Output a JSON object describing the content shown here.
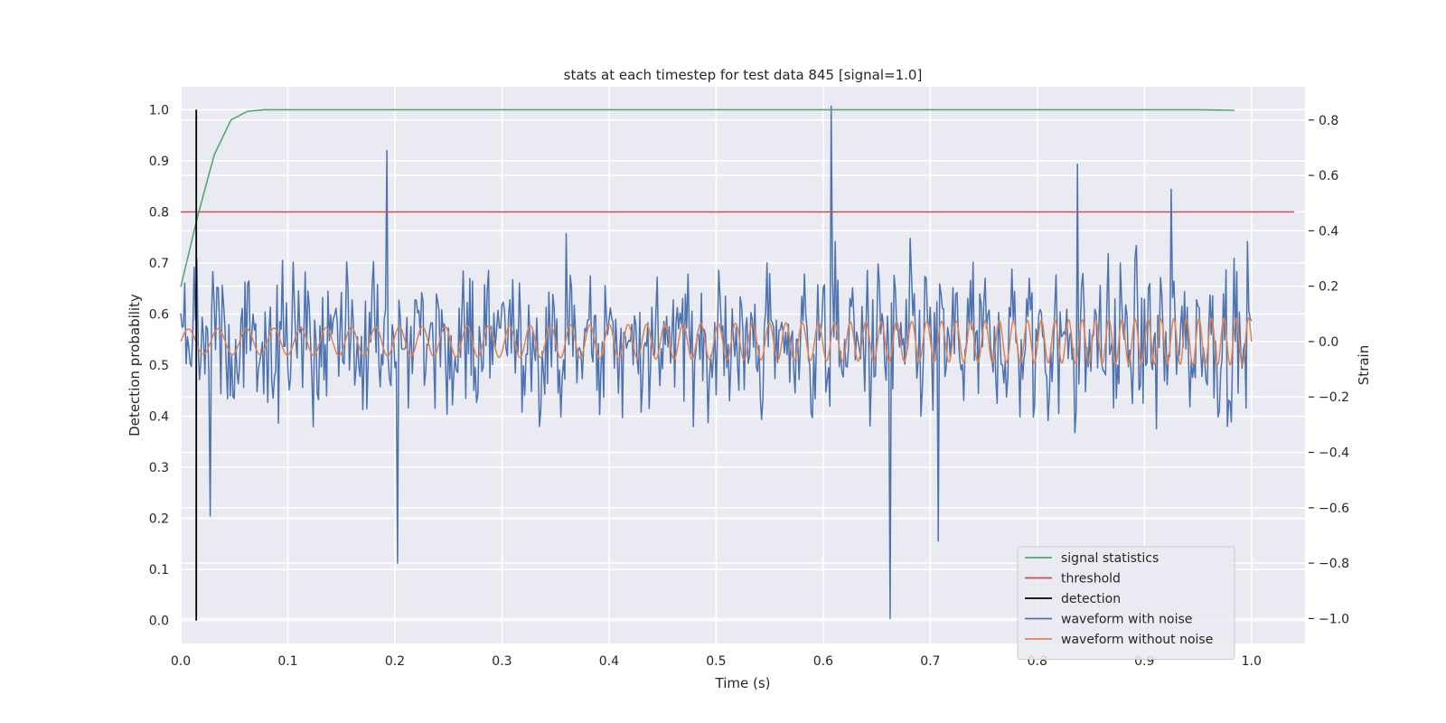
{
  "chart_data": {
    "type": "line",
    "title": "stats at each timestep for test data 845 [signal=1.0]",
    "xlabel": "Time (s)",
    "ylabel": "Detection probability",
    "y2label": "Strain",
    "xlim": [
      0.0,
      1.05
    ],
    "ylim": [
      -0.045,
      1.045
    ],
    "y2lim": [
      -1.09,
      0.92
    ],
    "xticks": [
      "0.0",
      "0.1",
      "0.2",
      "0.3",
      "0.4",
      "0.5",
      "0.6",
      "0.7",
      "0.8",
      "0.9",
      "1.0"
    ],
    "yticks": [
      "0.0",
      "0.1",
      "0.2",
      "0.3",
      "0.4",
      "0.5",
      "0.6",
      "0.7",
      "0.8",
      "0.9",
      "1.0"
    ],
    "y2ticks": [
      "−1.0",
      "−0.8",
      "−0.6",
      "−0.4",
      "−0.2",
      "0.0",
      "0.2",
      "0.4",
      "0.6",
      "0.8"
    ],
    "grid": true,
    "legend_position": "lower-right",
    "legend": [
      {
        "label": "signal statistics",
        "color": "#55a868"
      },
      {
        "label": "threshold",
        "color": "#c44e52"
      },
      {
        "label": "detection",
        "color": "#000000"
      },
      {
        "label": "waveform with noise",
        "color": "#4c72b0"
      },
      {
        "label": "waveform without noise",
        "color": "#dd8452"
      }
    ],
    "signal_statistics": {
      "axis": "left",
      "color": "#55a868",
      "x": [
        0.0,
        0.0156,
        0.0313,
        0.0469,
        0.0625,
        0.078,
        0.1,
        0.2,
        0.4,
        0.6,
        0.8,
        0.9,
        0.95,
        0.984
      ],
      "y": [
        0.653,
        0.79,
        0.912,
        0.98,
        0.997,
        1.0,
        1.0,
        1.0,
        1.0,
        1.0,
        1.0,
        1.0,
        1.0,
        0.999
      ]
    },
    "threshold": {
      "axis": "left",
      "color": "#c44e52",
      "value": 0.8,
      "x_range": [
        0.0,
        1.04
      ]
    },
    "detection": {
      "axis": "left",
      "color": "#000000",
      "x": 0.0145,
      "y_range": [
        0.0,
        1.0
      ]
    },
    "waveform_without_noise": {
      "axis": "right",
      "color": "#dd8452",
      "t_start": 0.0,
      "t_end": 1.0,
      "amplitude_start": 0.045,
      "amplitude_end": 0.085,
      "freq_start_hz": 35,
      "freq_end_hz": 88
    },
    "waveform_with_noise": {
      "axis": "right",
      "color": "#4c72b0",
      "t_start": 0.0,
      "t_end": 1.0,
      "n_samples": 800,
      "noise_std": 0.19,
      "range": [
        -1.0,
        0.85
      ],
      "notable_points": [
        {
          "x": 0.015,
          "y": 0.3
        },
        {
          "x": 0.027,
          "y": -0.63
        },
        {
          "x": 0.193,
          "y": 0.69
        },
        {
          "x": 0.202,
          "y": -0.8
        },
        {
          "x": 0.607,
          "y": 0.85
        },
        {
          "x": 0.662,
          "y": -1.0
        },
        {
          "x": 0.708,
          "y": -0.72
        },
        {
          "x": 0.838,
          "y": 0.64
        },
        {
          "x": 0.925,
          "y": 0.55
        }
      ]
    }
  }
}
